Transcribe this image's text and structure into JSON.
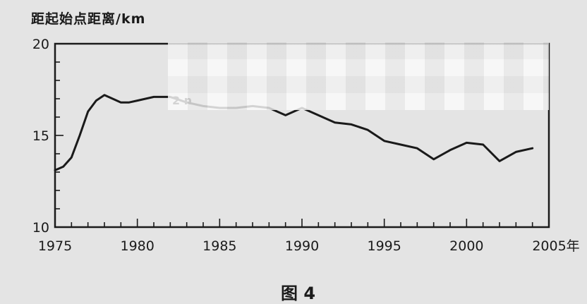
{
  "chart_data": {
    "type": "line",
    "ylabel": "距起始点距离/km",
    "xlim": [
      1975,
      2005
    ],
    "ylim": [
      10,
      20
    ],
    "x_ticks": [
      "1975",
      "1980",
      "1985",
      "1990",
      "1995",
      "2000",
      "2005年"
    ],
    "y_ticks": [
      "10",
      "15",
      "20"
    ],
    "annotation": "2 n",
    "caption": "图 4",
    "series": [
      {
        "x": [
          1975,
          1975.5,
          1976,
          1976.5,
          1977,
          1977.5,
          1978,
          1978.5,
          1979,
          1979.5,
          1980,
          1980.5,
          1981,
          1982,
          1983,
          1984,
          1985,
          1986,
          1987,
          1988,
          1989,
          1990,
          1991,
          1992,
          1993,
          1994,
          1995,
          1996,
          1997,
          1998,
          1999,
          2000,
          2001,
          2002,
          2003,
          2004
        ],
        "y": [
          13.1,
          13.3,
          13.8,
          15.0,
          16.3,
          16.9,
          17.2,
          17.0,
          16.8,
          16.8,
          16.9,
          17.0,
          17.1,
          17.1,
          16.8,
          16.6,
          16.5,
          16.5,
          16.6,
          16.5,
          16.1,
          16.5,
          16.1,
          15.7,
          15.6,
          15.3,
          14.7,
          14.5,
          14.3,
          13.7,
          14.2,
          14.6,
          14.5,
          13.6,
          14.1,
          14.3
        ]
      }
    ]
  }
}
